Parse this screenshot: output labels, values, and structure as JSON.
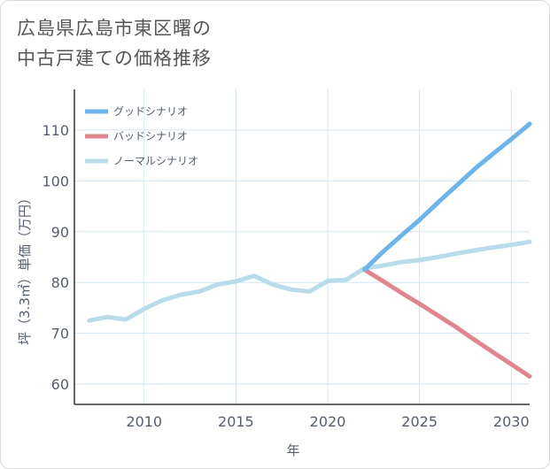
{
  "header": {
    "title_line1": "広島県広島市東区曙の",
    "title_line2": "中古戸建ての価格推移"
  },
  "chart_data": {
    "type": "line",
    "title": "広島県広島市東区曙の中古戸建ての価格推移",
    "xlabel": "年",
    "ylabel": "坪（3.3㎡）単価（万円）",
    "xlim": [
      2006.2,
      2031
    ],
    "ylim": [
      56,
      118
    ],
    "x_ticks": [
      2010,
      2015,
      2020,
      2025,
      2030
    ],
    "y_ticks": [
      60,
      70,
      80,
      90,
      100,
      110
    ],
    "grid": true,
    "legend_position": "top-left",
    "series": [
      {
        "name": "グッドシナリオ",
        "color": "#6cb4ea",
        "x": [
          2022,
          2023,
          2024,
          2025,
          2026,
          2027,
          2028,
          2029,
          2030,
          2031
        ],
        "y": [
          82.5,
          86.0,
          89.2,
          92.3,
          95.7,
          99.0,
          102.3,
          105.3,
          108.2,
          111.2
        ]
      },
      {
        "name": "バッドシナリオ",
        "color": "#e0868f",
        "x": [
          2022,
          2023,
          2024,
          2025,
          2026,
          2027,
          2028,
          2029,
          2030,
          2031
        ],
        "y": [
          82.5,
          80.3,
          78.0,
          75.8,
          73.5,
          71.2,
          68.7,
          66.3,
          63.9,
          61.5
        ]
      },
      {
        "name": "ノーマルシナリオ",
        "color": "#b8dcea",
        "x": [
          2007,
          2008,
          2009,
          2010,
          2011,
          2012,
          2013,
          2014,
          2015,
          2016,
          2017,
          2018,
          2019,
          2020,
          2021,
          2022,
          2023,
          2024,
          2025,
          2026,
          2027,
          2028,
          2029,
          2030,
          2031
        ],
        "y": [
          72.5,
          73.2,
          72.7,
          74.8,
          76.5,
          77.6,
          78.2,
          79.6,
          80.2,
          81.3,
          79.6,
          78.6,
          78.2,
          80.3,
          80.5,
          82.8,
          83.3,
          84.0,
          84.4,
          85.0,
          85.7,
          86.3,
          86.9,
          87.4,
          88.0
        ]
      }
    ]
  }
}
